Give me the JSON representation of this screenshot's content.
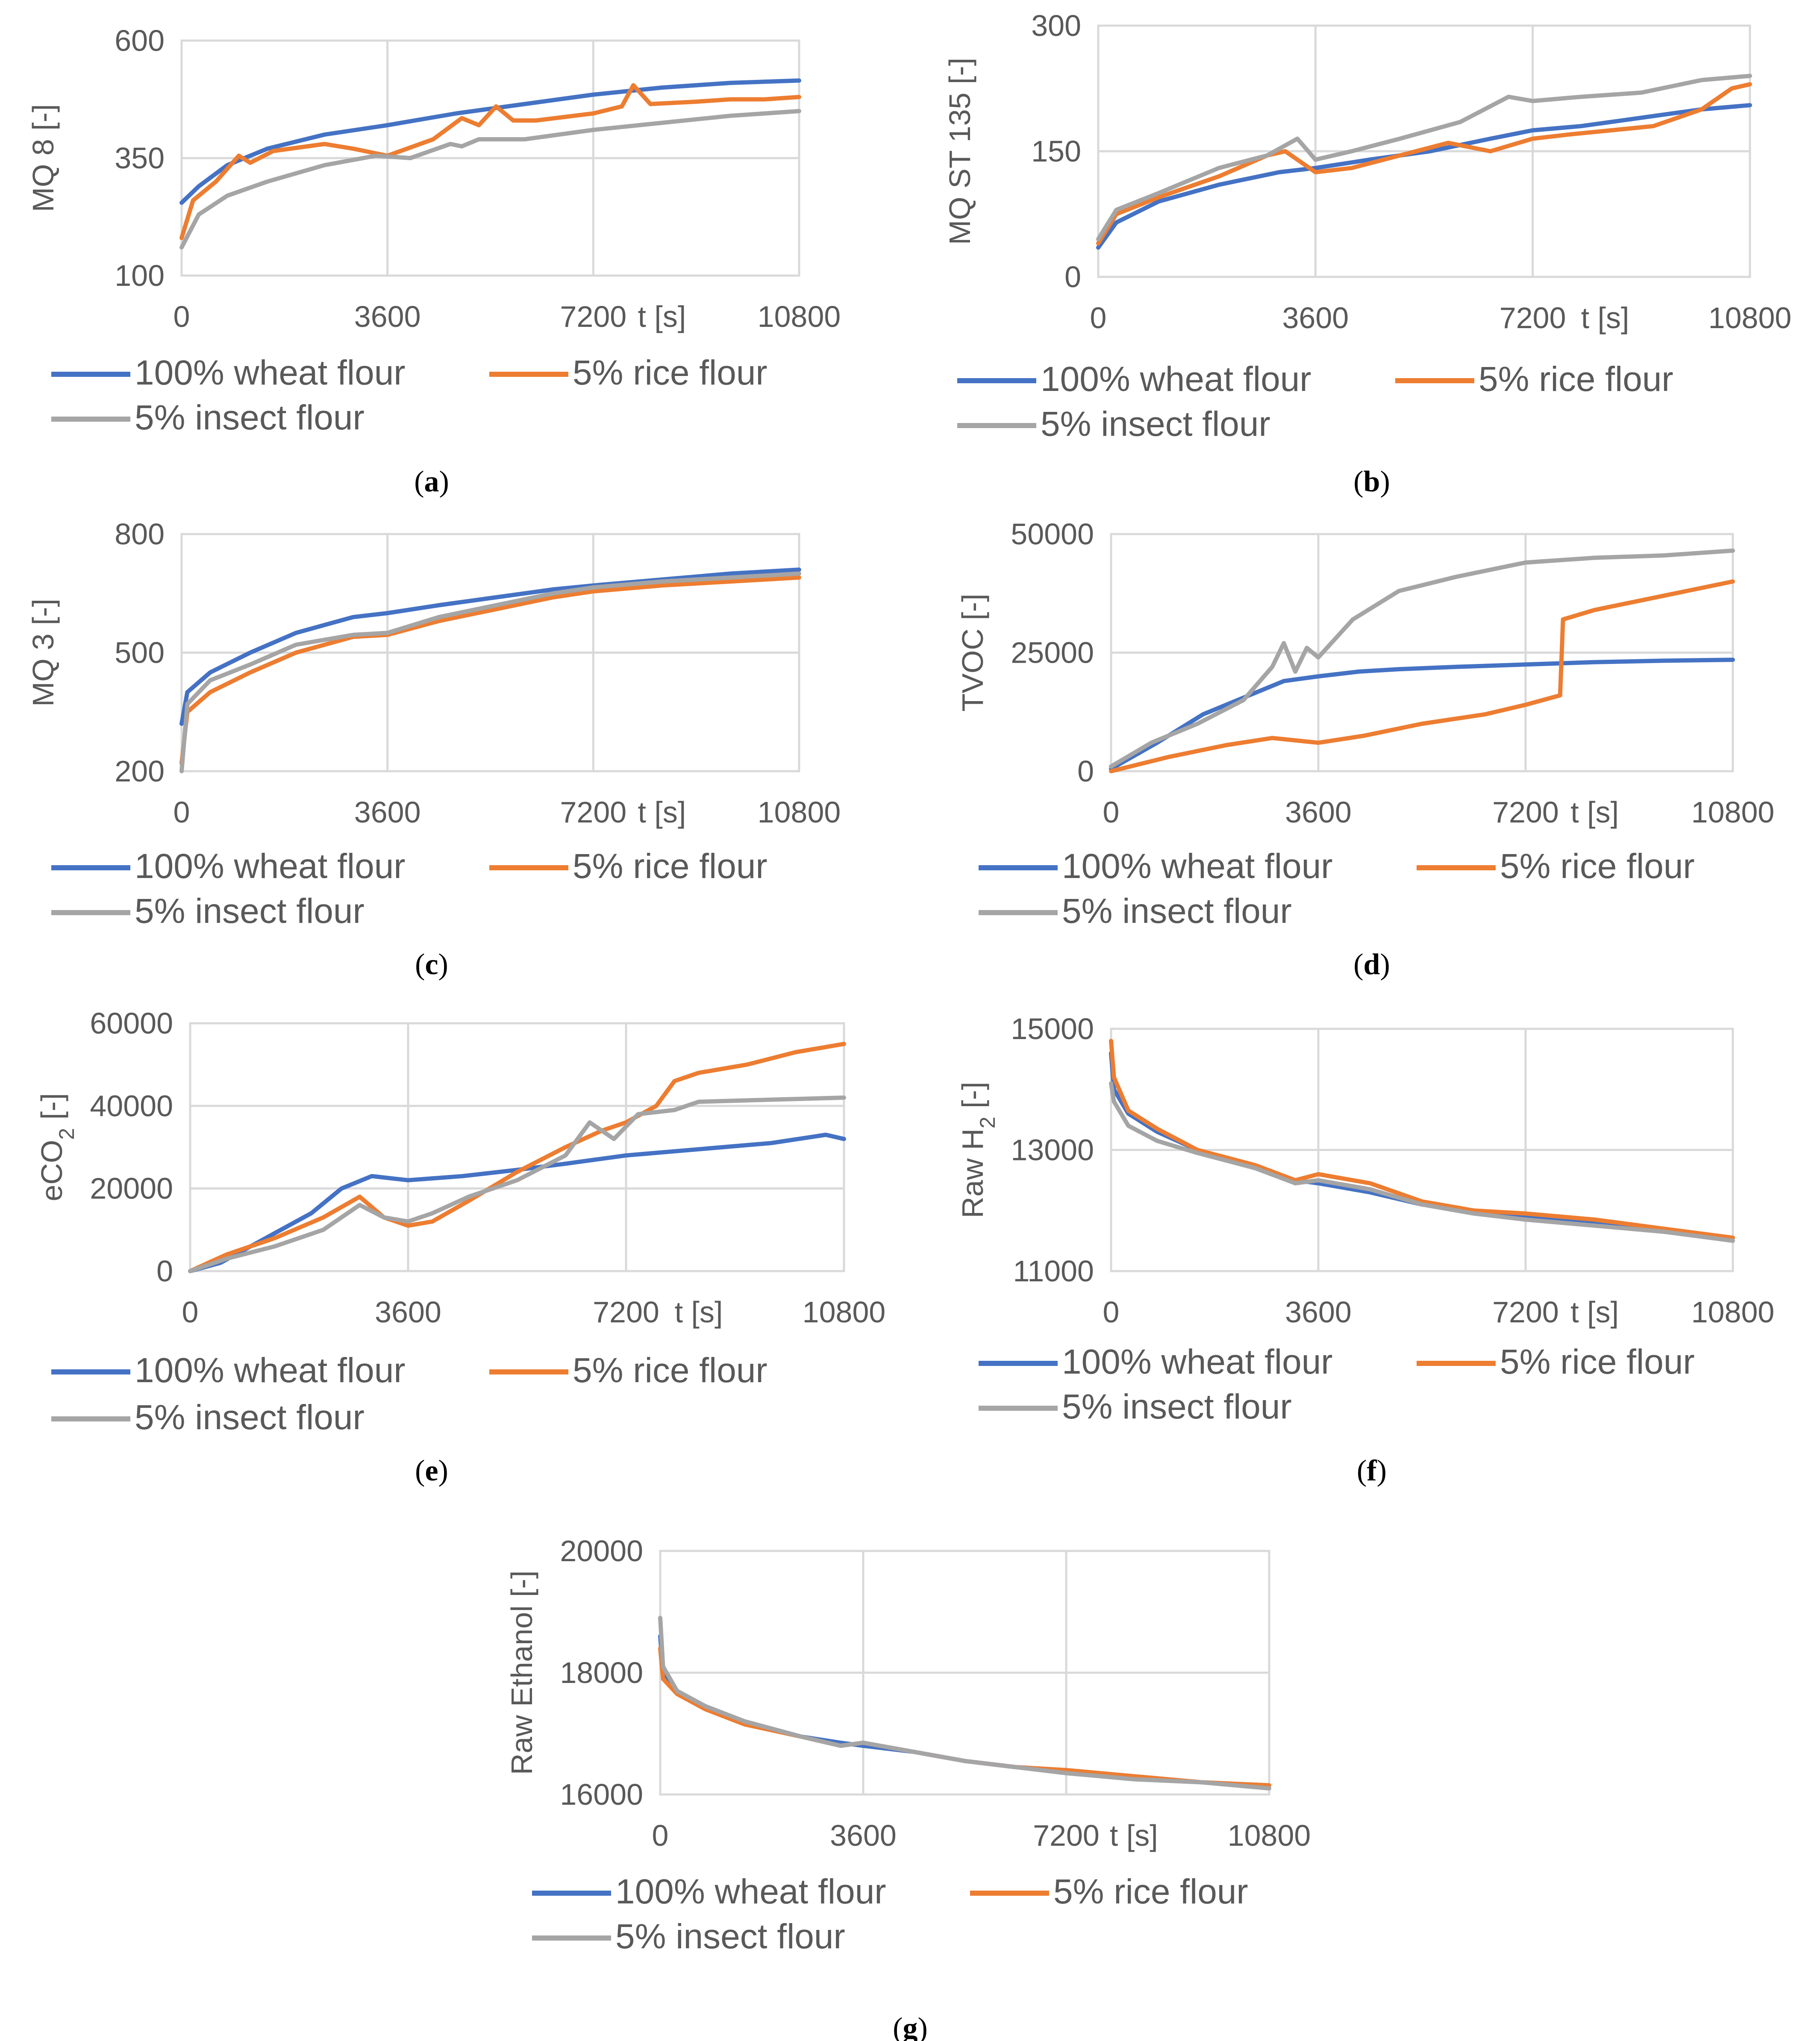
{
  "colors": {
    "wheat": "#4472c4",
    "rice": "#ed7d31",
    "insect": "#a5a5a5"
  },
  "legend": {
    "wheat": "100% wheat flour",
    "rice": "5% rice flour",
    "insect": "5% insect flour"
  },
  "chart_data": [
    {
      "id": "a",
      "type": "line",
      "caption_letter": "a",
      "ylabel": "MQ 8 [-]",
      "xlabel": "t [s]",
      "xlim": [
        0,
        10800
      ],
      "ylim": [
        100,
        600
      ],
      "xticks": [
        "0",
        "3600",
        "7200",
        "10800"
      ],
      "yticks": [
        "100",
        "350",
        "600"
      ],
      "series": [
        {
          "key": "wheat",
          "name": "100% wheat flour",
          "x": [
            0,
            300,
            800,
            1500,
            2500,
            3600,
            4800,
            6000,
            7200,
            8400,
            9600,
            10800
          ],
          "y": [
            255,
            290,
            335,
            370,
            400,
            420,
            445,
            465,
            485,
            500,
            510,
            515
          ]
        },
        {
          "key": "rice",
          "name": "5% rice flour",
          "x": [
            0,
            200,
            600,
            1000,
            1200,
            1600,
            2500,
            3000,
            3600,
            4400,
            4900,
            5200,
            5500,
            5800,
            6200,
            7200,
            7700,
            7900,
            8200,
            9000,
            9600,
            10200,
            10800
          ],
          "y": [
            180,
            260,
            300,
            355,
            340,
            365,
            380,
            370,
            355,
            390,
            435,
            420,
            460,
            430,
            430,
            445,
            460,
            505,
            465,
            470,
            475,
            475,
            480
          ]
        },
        {
          "key": "insect",
          "name": "5% insect flour",
          "x": [
            0,
            300,
            800,
            1500,
            2500,
            3400,
            4000,
            4700,
            4900,
            5200,
            6000,
            7200,
            8400,
            9600,
            10800
          ],
          "y": [
            160,
            230,
            270,
            300,
            335,
            355,
            350,
            380,
            375,
            390,
            390,
            410,
            425,
            440,
            450
          ]
        }
      ]
    },
    {
      "id": "b",
      "type": "line",
      "caption_letter": "b",
      "ylabel": "MQ ST 135 [-]",
      "xlabel": "t [s]",
      "xlim": [
        0,
        10800
      ],
      "ylim": [
        0,
        300
      ],
      "xticks": [
        "0",
        "3600",
        "7200",
        "10800"
      ],
      "yticks": [
        "0",
        "150",
        "300"
      ],
      "series": [
        {
          "key": "wheat",
          "name": "100% wheat flour",
          "x": [
            0,
            300,
            1000,
            2000,
            3000,
            3600,
            4500,
            5500,
            6500,
            7200,
            8000,
            9000,
            10000,
            10800
          ],
          "y": [
            35,
            65,
            90,
            110,
            125,
            130,
            140,
            150,
            165,
            175,
            180,
            190,
            200,
            205
          ]
        },
        {
          "key": "rice",
          "name": "5% rice flour",
          "x": [
            0,
            300,
            1000,
            2000,
            2800,
            3100,
            3600,
            4200,
            5000,
            5800,
            6500,
            7200,
            7800,
            8500,
            9200,
            10000,
            10500,
            10800
          ],
          "y": [
            40,
            75,
            95,
            120,
            145,
            150,
            125,
            130,
            145,
            160,
            150,
            165,
            170,
            175,
            180,
            200,
            225,
            230
          ]
        },
        {
          "key": "insect",
          "name": "5% insect flour",
          "x": [
            0,
            300,
            1000,
            2000,
            2800,
            3300,
            3600,
            4200,
            5000,
            6000,
            6800,
            7200,
            8000,
            9000,
            10000,
            10800
          ],
          "y": [
            45,
            80,
            100,
            130,
            145,
            165,
            140,
            150,
            165,
            185,
            215,
            210,
            215,
            220,
            235,
            240
          ]
        }
      ]
    },
    {
      "id": "c",
      "type": "line",
      "caption_letter": "c",
      "ylabel": "MQ 3 [-]",
      "xlabel": "t [s]",
      "xlim": [
        0,
        10800
      ],
      "ylim": [
        200,
        800
      ],
      "xticks": [
        "0",
        "3600",
        "7200",
        "10800"
      ],
      "yticks": [
        "200",
        "500",
        "800"
      ],
      "series": [
        {
          "key": "wheat",
          "name": "100% wheat flour",
          "x": [
            0,
            100,
            500,
            1200,
            2000,
            3000,
            3600,
            4500,
            5500,
            6500,
            7200,
            8400,
            9600,
            10800
          ],
          "y": [
            320,
            400,
            450,
            500,
            550,
            590,
            600,
            620,
            640,
            660,
            670,
            685,
            700,
            710
          ]
        },
        {
          "key": "rice",
          "name": "5% rice flour",
          "x": [
            0,
            100,
            500,
            1200,
            2000,
            3000,
            3600,
            4500,
            5500,
            6500,
            7200,
            8400,
            9600,
            10800
          ],
          "y": [
            220,
            350,
            400,
            450,
            500,
            540,
            545,
            580,
            610,
            640,
            655,
            670,
            680,
            690
          ]
        },
        {
          "key": "insect",
          "name": "5% insect flour",
          "x": [
            0,
            100,
            500,
            1200,
            2000,
            3000,
            3600,
            4500,
            5500,
            6500,
            7200,
            8400,
            9600,
            10800
          ],
          "y": [
            200,
            370,
            430,
            470,
            520,
            545,
            550,
            590,
            620,
            650,
            665,
            680,
            690,
            700
          ]
        }
      ]
    },
    {
      "id": "d",
      "type": "line",
      "caption_letter": "d",
      "ylabel": "TVOC [-]",
      "xlabel": "t [s]",
      "xlim": [
        0,
        10800
      ],
      "ylim": [
        0,
        50000
      ],
      "xticks": [
        "0",
        "3600",
        "7200",
        "10800"
      ],
      "yticks": [
        "0",
        "25000",
        "50000"
      ],
      "series": [
        {
          "key": "wheat",
          "name": "100% wheat flour",
          "x": [
            0,
            800,
            1600,
            2400,
            3000,
            3600,
            4300,
            5000,
            6000,
            7200,
            8400,
            9600,
            10800
          ],
          "y": [
            500,
            6000,
            12000,
            16000,
            19000,
            20000,
            21000,
            21500,
            22000,
            22500,
            23000,
            23300,
            23500
          ]
        },
        {
          "key": "rice",
          "name": "5% rice flour",
          "x": [
            0,
            1000,
            2000,
            2800,
            3600,
            4400,
            5400,
            6500,
            7200,
            7800,
            7850,
            8400,
            9600,
            10800
          ],
          "y": [
            0,
            3000,
            5500,
            7000,
            6000,
            7500,
            10000,
            12000,
            14000,
            16000,
            32000,
            34000,
            37000,
            40000
          ]
        },
        {
          "key": "insect",
          "name": "5% insect flour",
          "x": [
            0,
            700,
            1500,
            2300,
            2800,
            3000,
            3200,
            3400,
            3600,
            4200,
            5000,
            6000,
            7200,
            8400,
            9600,
            10800
          ],
          "y": [
            1000,
            6000,
            10000,
            15000,
            22000,
            27000,
            21000,
            26000,
            24000,
            32000,
            38000,
            41000,
            44000,
            45000,
            45500,
            46500
          ]
        }
      ]
    },
    {
      "id": "e",
      "type": "line",
      "caption_letter": "e",
      "ylabel": "eCO2 [-]",
      "xlabel": "t [s]",
      "xlim": [
        0,
        10800
      ],
      "ylim": [
        0,
        60000
      ],
      "xticks": [
        "0",
        "3600",
        "7200",
        "10800"
      ],
      "yticks": [
        "0",
        "20000",
        "40000",
        "60000"
      ],
      "series": [
        {
          "key": "wheat",
          "name": "100% wheat flour",
          "x": [
            0,
            500,
            1000,
            2000,
            2500,
            3000,
            3600,
            4500,
            5400,
            6200,
            7200,
            8400,
            9600,
            10500,
            10800
          ],
          "y": [
            0,
            2000,
            6000,
            14000,
            20000,
            23000,
            22000,
            23000,
            24500,
            26000,
            28000,
            29500,
            31000,
            33000,
            32000
          ]
        },
        {
          "key": "rice",
          "name": "5% rice flour",
          "x": [
            0,
            600,
            1400,
            2200,
            2800,
            3200,
            3600,
            4000,
            4600,
            5400,
            6200,
            6800,
            7200,
            7700,
            8000,
            8400,
            9200,
            10000,
            10800
          ],
          "y": [
            0,
            4000,
            8000,
            13000,
            18000,
            13000,
            11000,
            12000,
            17000,
            24000,
            30000,
            34000,
            36000,
            40000,
            46000,
            48000,
            50000,
            53000,
            55000
          ]
        },
        {
          "key": "insect",
          "name": "5% insect flour",
          "x": [
            0,
            600,
            1400,
            2200,
            2800,
            3200,
            3600,
            4000,
            4600,
            5400,
            6200,
            6600,
            7000,
            7400,
            8000,
            8400,
            9600,
            10800
          ],
          "y": [
            0,
            3000,
            6000,
            10000,
            16000,
            13000,
            12000,
            14000,
            18000,
            22000,
            28000,
            36000,
            32000,
            38000,
            39000,
            41000,
            41500,
            42000
          ]
        }
      ]
    },
    {
      "id": "f",
      "type": "line",
      "caption_letter": "f",
      "ylabel": "Raw H2 [-]",
      "xlabel": "t [s]",
      "xlim": [
        0,
        10800
      ],
      "ylim": [
        11000,
        15000
      ],
      "xticks": [
        "0",
        "3600",
        "7200",
        "10800"
      ],
      "yticks": [
        "11000",
        "13000",
        "15000"
      ],
      "series": [
        {
          "key": "wheat",
          "name": "100% wheat flour",
          "x": [
            0,
            50,
            300,
            800,
            1500,
            2500,
            3200,
            3600,
            4500,
            5400,
            6300,
            7200,
            8400,
            9600,
            10800
          ],
          "y": [
            14600,
            14000,
            13600,
            13300,
            13000,
            12700,
            12500,
            12450,
            12300,
            12100,
            12000,
            11900,
            11800,
            11650,
            11550
          ]
        },
        {
          "key": "rice",
          "name": "5% rice flour",
          "x": [
            0,
            50,
            300,
            800,
            1500,
            2500,
            3200,
            3600,
            4500,
            5400,
            6300,
            7200,
            8400,
            9600,
            10800
          ],
          "y": [
            14800,
            14200,
            13650,
            13350,
            13000,
            12750,
            12500,
            12600,
            12450,
            12150,
            12000,
            11950,
            11850,
            11700,
            11550
          ]
        },
        {
          "key": "insect",
          "name": "5% insect flour",
          "x": [
            0,
            50,
            300,
            800,
            1500,
            2500,
            3200,
            3600,
            4500,
            5400,
            6300,
            7200,
            8400,
            9600,
            10800
          ],
          "y": [
            14100,
            13800,
            13400,
            13150,
            12950,
            12700,
            12450,
            12500,
            12350,
            12100,
            11950,
            11850,
            11750,
            11650,
            11500
          ]
        }
      ]
    },
    {
      "id": "g",
      "type": "line",
      "caption_letter": "g",
      "ylabel": "Raw Ethanol [-]",
      "xlabel": "t [s]",
      "xlim": [
        0,
        10800
      ],
      "ylim": [
        16000,
        20000
      ],
      "xticks": [
        "0",
        "3600",
        "7200",
        "10800"
      ],
      "yticks": [
        "16000",
        "18000",
        "20000"
      ],
      "series": [
        {
          "key": "wheat",
          "name": "100% wheat flour",
          "x": [
            0,
            50,
            300,
            800,
            1500,
            2500,
            3200,
            3600,
            4500,
            5400,
            6300,
            7200,
            8400,
            9600,
            10800
          ],
          "y": [
            18600,
            18000,
            17700,
            17450,
            17200,
            16950,
            16850,
            16800,
            16700,
            16550,
            16450,
            16400,
            16300,
            16200,
            16150
          ]
        },
        {
          "key": "rice",
          "name": "5% rice flour",
          "x": [
            0,
            50,
            300,
            800,
            1500,
            2500,
            3200,
            3600,
            4500,
            5400,
            6300,
            7200,
            8400,
            9600,
            10800
          ],
          "y": [
            18400,
            17900,
            17650,
            17400,
            17150,
            16950,
            16800,
            16850,
            16700,
            16550,
            16450,
            16400,
            16300,
            16200,
            16150
          ]
        },
        {
          "key": "insect",
          "name": "5% insect flour",
          "x": [
            0,
            50,
            300,
            800,
            1500,
            2500,
            3200,
            3600,
            4500,
            5400,
            6300,
            7200,
            8400,
            9600,
            10800
          ],
          "y": [
            18900,
            18100,
            17700,
            17450,
            17200,
            16950,
            16800,
            16850,
            16700,
            16550,
            16450,
            16350,
            16250,
            16200,
            16100
          ]
        }
      ]
    }
  ]
}
